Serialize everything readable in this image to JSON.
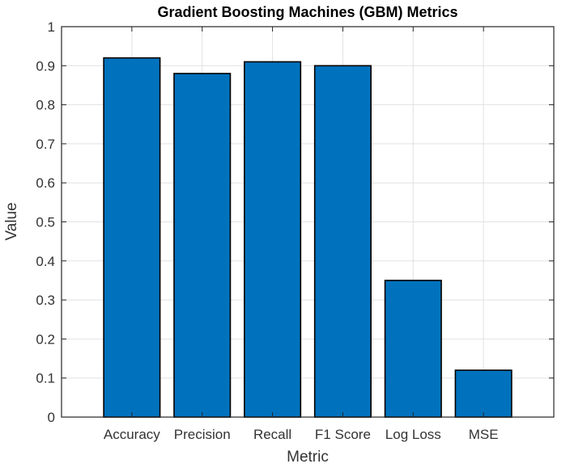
{
  "chart_data": {
    "type": "bar",
    "title": "Gradient Boosting Machines (GBM) Metrics",
    "xlabel": "Metric",
    "ylabel": "Value",
    "categories": [
      "Accuracy",
      "Precision",
      "Recall",
      "F1 Score",
      "Log Loss",
      "MSE"
    ],
    "values": [
      0.92,
      0.88,
      0.91,
      0.9,
      0.35,
      0.12
    ],
    "ylim": [
      0,
      1
    ],
    "yticks": [
      0,
      0.1,
      0.2,
      0.3,
      0.4,
      0.5,
      0.6,
      0.7,
      0.8,
      0.9,
      1
    ],
    "ytick_labels": [
      "0",
      "0.1",
      "0.2",
      "0.3",
      "0.4",
      "0.5",
      "0.6",
      "0.7",
      "0.8",
      "0.9",
      "1"
    ],
    "grid": true,
    "legend": "none",
    "bar_color": "#0072BD"
  }
}
